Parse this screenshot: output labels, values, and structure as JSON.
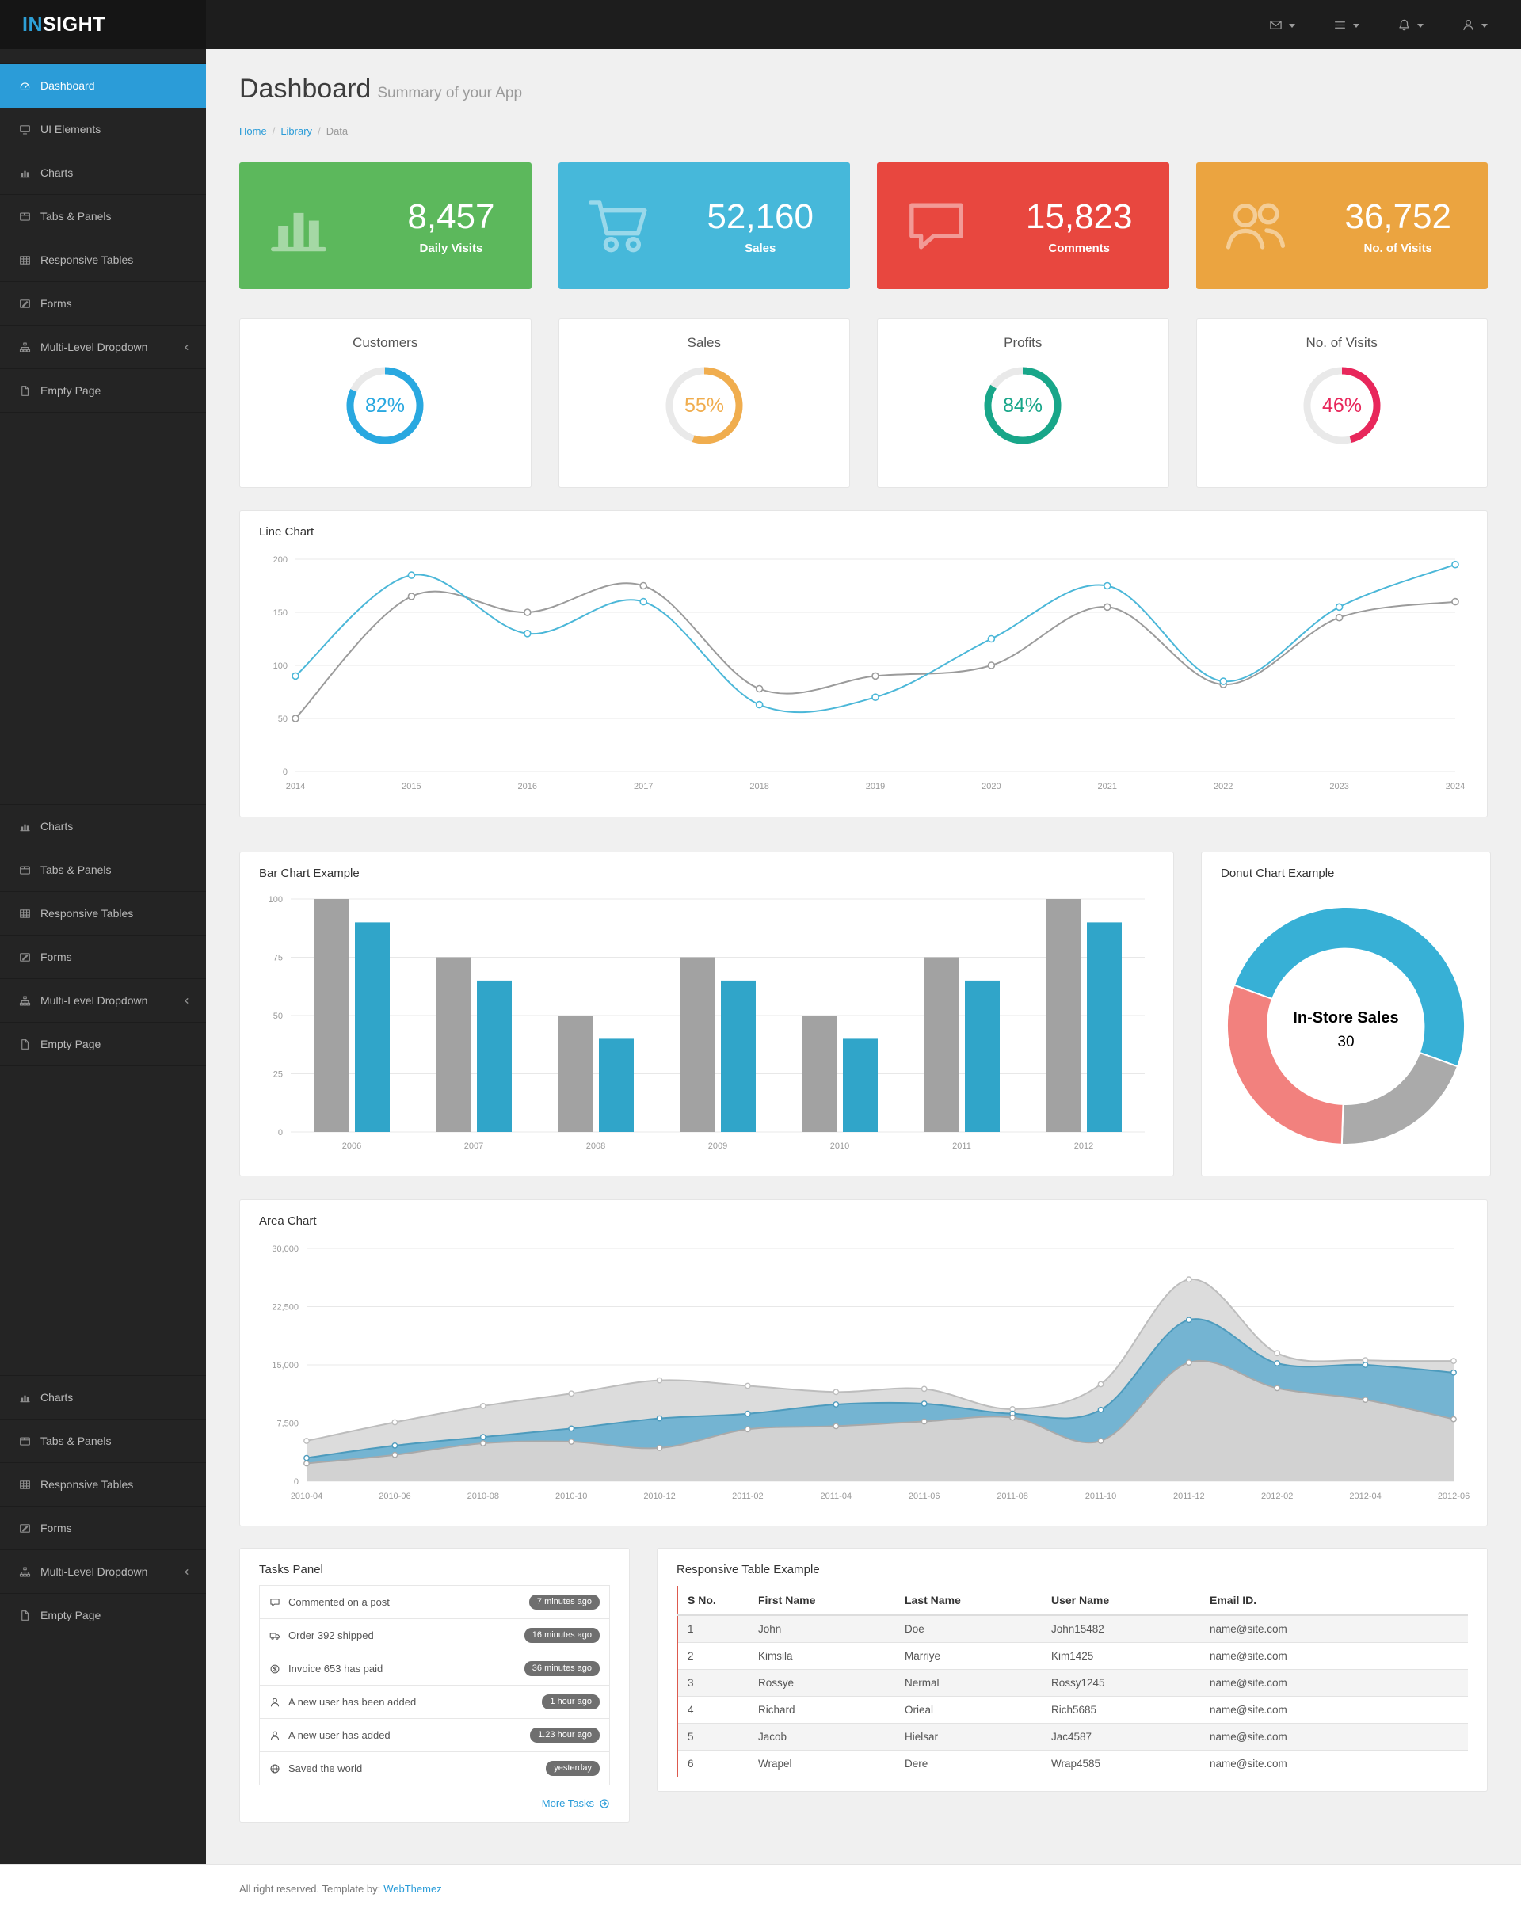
{
  "brand": {
    "primary": "IN",
    "secondary": "SIGHT"
  },
  "topbar": {
    "menus": [
      {
        "name": "messages-menu",
        "icon": "envelope-icon"
      },
      {
        "name": "tasks-menu",
        "icon": "list-icon"
      },
      {
        "name": "notifications-menu",
        "icon": "bell-icon"
      },
      {
        "name": "account-menu",
        "icon": "user-icon"
      }
    ]
  },
  "sidebar": {
    "groups": [
      {
        "items": [
          {
            "label": "Dashboard",
            "icon": "dashboard-icon",
            "active": true
          },
          {
            "label": "UI Elements",
            "icon": "desktop-icon"
          },
          {
            "label": "Charts",
            "icon": "chart-icon"
          },
          {
            "label": "Tabs & Panels",
            "icon": "tabs-icon"
          },
          {
            "label": "Responsive Tables",
            "icon": "table-icon"
          },
          {
            "label": "Forms",
            "icon": "form-icon"
          },
          {
            "label": "Multi-Level Dropdown",
            "icon": "sitemap-icon",
            "chevron": true
          },
          {
            "label": "Empty Page",
            "icon": "file-icon"
          }
        ]
      },
      {
        "items": [
          {
            "label": "Charts",
            "icon": "chart-icon"
          },
          {
            "label": "Tabs & Panels",
            "icon": "tabs-icon"
          },
          {
            "label": "Responsive Tables",
            "icon": "table-icon"
          },
          {
            "label": "Forms",
            "icon": "form-icon"
          },
          {
            "label": "Multi-Level Dropdown",
            "icon": "sitemap-icon",
            "chevron": true
          },
          {
            "label": "Empty Page",
            "icon": "file-icon"
          }
        ]
      },
      {
        "items": [
          {
            "label": "Charts",
            "icon": "chart-icon"
          },
          {
            "label": "Tabs & Panels",
            "icon": "tabs-icon"
          },
          {
            "label": "Responsive Tables",
            "icon": "table-icon"
          },
          {
            "label": "Forms",
            "icon": "form-icon"
          },
          {
            "label": "Multi-Level Dropdown",
            "icon": "sitemap-icon",
            "chevron": true
          },
          {
            "label": "Empty Page",
            "icon": "file-icon"
          }
        ]
      }
    ]
  },
  "page": {
    "title": "Dashboard",
    "subtitle": "Summary of your App",
    "breadcrumb": [
      "Home",
      "Library",
      "Data"
    ]
  },
  "stats": [
    {
      "value": "8,457",
      "label": "Daily Visits",
      "color": "#5cb85c",
      "icon": "chart-icon"
    },
    {
      "value": "52,160",
      "label": "Sales",
      "color": "#46b8da",
      "icon": "cart-icon"
    },
    {
      "value": "15,823",
      "label": "Comments",
      "color": "#e8473f",
      "icon": "comment-icon"
    },
    {
      "value": "36,752",
      "label": "No. of Visits",
      "color": "#eba440",
      "icon": "users-icon"
    }
  ],
  "gauges": [
    {
      "title": "Customers",
      "percent": 82,
      "color": "#29a8e0"
    },
    {
      "title": "Sales",
      "percent": 55,
      "color": "#f0ad4e"
    },
    {
      "title": "Profits",
      "percent": 84,
      "color": "#18a689"
    },
    {
      "title": "No. of Visits",
      "percent": 46,
      "color": "#e8275b"
    }
  ],
  "chart_data": {
    "line_chart": {
      "type": "line",
      "title": "Line Chart",
      "x_labels": [
        "2014",
        "2015",
        "2016",
        "2017",
        "2018",
        "2019",
        "2020",
        "2021",
        "2022",
        "2023",
        "2024"
      ],
      "ylim": [
        0,
        200
      ],
      "y_ticks": [
        0,
        50,
        100,
        150,
        200
      ],
      "grid": true,
      "legend": "none",
      "series": [
        {
          "name": "series-gray",
          "color": "#9b9b9b",
          "values": [
            50,
            165,
            150,
            175,
            78,
            90,
            100,
            155,
            82,
            145,
            160
          ]
        },
        {
          "name": "series-blue",
          "color": "#4bb7d8",
          "values": [
            90,
            185,
            130,
            160,
            63,
            70,
            125,
            175,
            85,
            155,
            195
          ]
        }
      ]
    },
    "bar_chart": {
      "type": "bar",
      "title": "Bar Chart Example",
      "categories": [
        "2006",
        "2007",
        "2008",
        "2009",
        "2010",
        "2011",
        "2012"
      ],
      "ylim": [
        0,
        100
      ],
      "y_ticks": [
        0,
        25,
        50,
        75,
        100
      ],
      "grid": true,
      "legend": "none",
      "series": [
        {
          "name": "series-gray",
          "color": "#a2a2a2",
          "values": [
            100,
            75,
            50,
            75,
            50,
            75,
            100
          ]
        },
        {
          "name": "series-blue",
          "color": "#30a5c9",
          "values": [
            90,
            65,
            40,
            65,
            40,
            65,
            90
          ]
        }
      ]
    },
    "donut_chart": {
      "type": "pie",
      "title": "Donut Chart Example",
      "center_label": "In-Store Sales",
      "center_value": "30",
      "segments": [
        {
          "name": "segment-blue",
          "color": "#37b0d6",
          "value": 50
        },
        {
          "name": "segment-gray",
          "color": "#aaaaaa",
          "value": 20
        },
        {
          "name": "segment-pink",
          "color": "#f2817e",
          "value": 30
        }
      ]
    },
    "area_chart": {
      "type": "area",
      "title": "Area Chart",
      "x_labels": [
        "2010-04",
        "2010-06",
        "2010-08",
        "2010-10",
        "2010-12",
        "2011-02",
        "2011-04",
        "2011-06",
        "2011-08",
        "2011-10",
        "2011-12",
        "2012-02",
        "2012-04",
        "2012-06"
      ],
      "ylim": [
        0,
        30000
      ],
      "y_ticks": [
        0,
        7500,
        15000,
        22500,
        30000
      ],
      "y_tick_labels": [
        "0",
        "7,500",
        "15,000",
        "22,500",
        "30,000"
      ],
      "grid": true,
      "legend": "none",
      "series": [
        {
          "name": "series-gray-back",
          "color": "#bdbdbd",
          "fill": "#dcdcdc",
          "values": [
            5200,
            7600,
            9700,
            11300,
            13000,
            12300,
            11500,
            11900,
            9300,
            12500,
            26000,
            16500,
            15600,
            15500
          ]
        },
        {
          "name": "series-blue",
          "color": "#4d9bbd",
          "fill": "#74b4d2",
          "values": [
            3000,
            4600,
            5700,
            6800,
            8100,
            8700,
            9900,
            10000,
            8700,
            9200,
            20800,
            15200,
            15000,
            14000
          ]
        },
        {
          "name": "series-gray-front",
          "color": "#a9a9a9",
          "fill": "#d2d2d2",
          "values": [
            2300,
            3400,
            4900,
            5100,
            4300,
            6700,
            7100,
            7700,
            8200,
            5200,
            15300,
            12000,
            10500,
            8000
          ]
        }
      ]
    }
  },
  "tasks": {
    "title": "Tasks Panel",
    "more_label": "More Tasks",
    "items": [
      {
        "icon": "comment-icon",
        "text": "Commented on a post",
        "badge": "7 minutes ago"
      },
      {
        "icon": "truck-icon",
        "text": "Order 392 shipped",
        "badge": "16 minutes ago"
      },
      {
        "icon": "coin-icon",
        "text": "Invoice 653 has paid",
        "badge": "36 minutes ago"
      },
      {
        "icon": "user-icon",
        "text": "A new user has been added",
        "badge": "1 hour ago"
      },
      {
        "icon": "user-icon",
        "text": "A new user has added",
        "badge": "1.23 hour ago"
      },
      {
        "icon": "globe-icon",
        "text": "Saved the world",
        "badge": "yesterday"
      }
    ]
  },
  "table": {
    "title": "Responsive Table Example",
    "columns": [
      "S No.",
      "First Name",
      "Last Name",
      "User Name",
      "Email ID."
    ],
    "rows": [
      [
        "1",
        "John",
        "Doe",
        "John15482",
        "name@site.com"
      ],
      [
        "2",
        "Kimsila",
        "Marriye",
        "Kim1425",
        "name@site.com"
      ],
      [
        "3",
        "Rossye",
        "Nermal",
        "Rossy1245",
        "name@site.com"
      ],
      [
        "4",
        "Richard",
        "Orieal",
        "Rich5685",
        "name@site.com"
      ],
      [
        "5",
        "Jacob",
        "Hielsar",
        "Jac4587",
        "name@site.com"
      ],
      [
        "6",
        "Wrapel",
        "Dere",
        "Wrap4585",
        "name@site.com"
      ]
    ]
  },
  "footer": {
    "text": "All right reserved. Template by:",
    "link_label": "WebThemez"
  }
}
